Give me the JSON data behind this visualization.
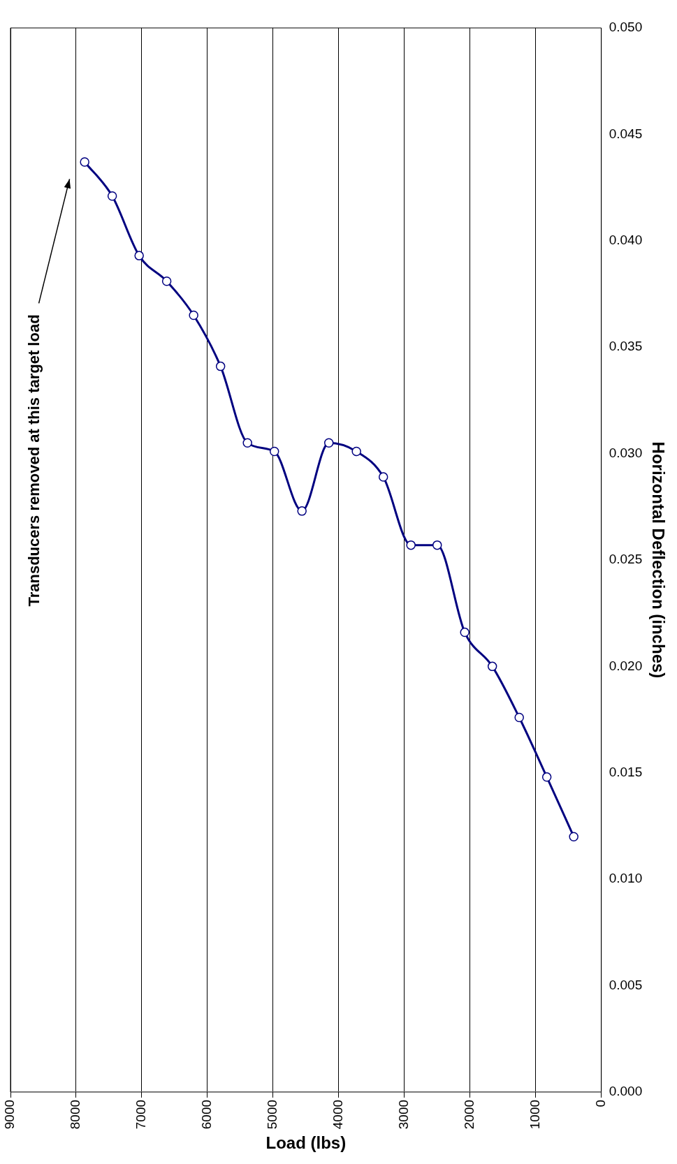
{
  "chart_data": {
    "type": "line",
    "xlabel": "Load (lbs)",
    "ylabel": "Horizontal Deflection (inches)",
    "x": [
      420,
      830,
      1250,
      1660,
      2080,
      2500,
      2900,
      3320,
      3730,
      4150,
      4560,
      4980,
      5390,
      5800,
      6210,
      6620,
      7040,
      7450,
      7870
    ],
    "series": [
      {
        "color": "#000080",
        "values": [
          0.012,
          0.0148,
          0.0176,
          0.02,
          0.0216,
          0.0257,
          0.0257,
          0.0289,
          0.0301,
          0.0305,
          0.0273,
          0.0301,
          0.0305,
          0.0341,
          0.0365,
          0.0381,
          0.0393,
          0.0421,
          0.0437
        ]
      }
    ],
    "xlim": [
      9000,
      0
    ],
    "xticks": [
      9000,
      8000,
      7000,
      6000,
      5000,
      4000,
      3000,
      2000,
      1000,
      0
    ],
    "ylim": [
      0,
      0.05
    ],
    "yticks": [
      {
        "value": 0,
        "label": "0.000"
      },
      {
        "value": 0.005,
        "label": "0.005"
      },
      {
        "value": 0.01,
        "label": "0.010"
      },
      {
        "value": 0.015,
        "label": "0.015"
      },
      {
        "value": 0.02,
        "label": "0.020"
      },
      {
        "value": 0.025,
        "label": "0.025"
      },
      {
        "value": 0.03,
        "label": "0.030"
      },
      {
        "value": 0.035,
        "label": "0.035"
      },
      {
        "value": 0.04,
        "label": "0.040"
      },
      {
        "value": 0.045,
        "label": "0.045"
      },
      {
        "value": 0.05,
        "label": "0.050"
      }
    ],
    "grid": "x",
    "marker": "circle",
    "line_style": "solid",
    "legend": false,
    "annotations": [
      "Transducers removed at this target load"
    ]
  }
}
